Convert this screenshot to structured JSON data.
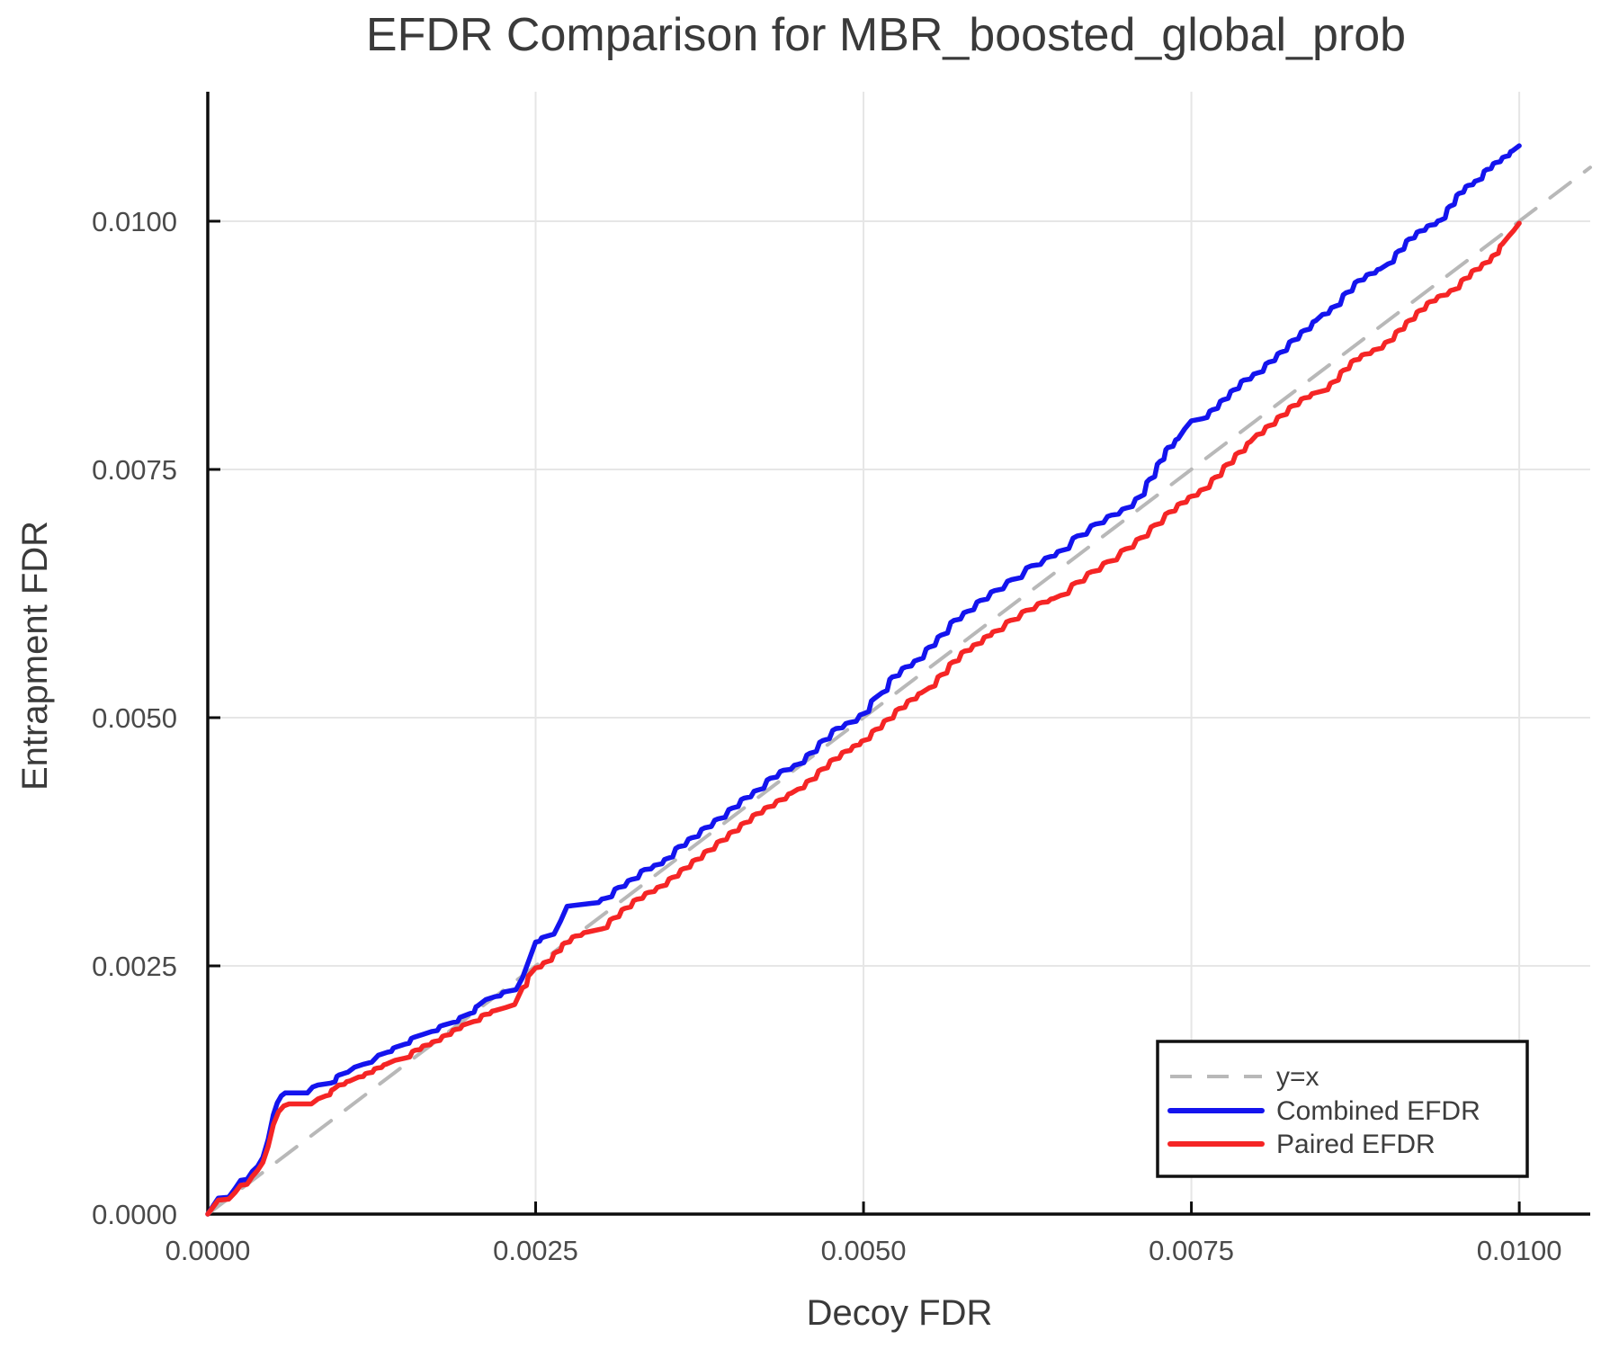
{
  "chart_data": {
    "type": "line",
    "title": "EFDR Comparison for MBR_boosted_global_prob",
    "xlabel": "Decoy FDR",
    "ylabel": "Entrapment FDR",
    "xlim": [
      0.0,
      0.010541
    ],
    "ylim": [
      0.0,
      0.011304
    ],
    "xticks": [
      0.0,
      0.0025,
      0.005,
      0.0075,
      0.01
    ],
    "yticks": [
      0.0,
      0.0025,
      0.005,
      0.0075,
      0.01
    ],
    "xtick_labels": [
      "0.0000",
      "0.0025",
      "0.0050",
      "0.0075",
      "0.0100"
    ],
    "ytick_labels": [
      "0.0000",
      "0.0025",
      "0.0050",
      "0.0075",
      "0.0100"
    ],
    "grid": true,
    "legend_position": "bottom-right",
    "series": [
      {
        "name": "y=x",
        "style": "dashed",
        "color": "#b8b8b8",
        "points": [
          [
            0.0,
            0.0
          ],
          [
            0.010541,
            0.010541
          ]
        ]
      },
      {
        "name": "Combined EFDR",
        "style": "solid",
        "color": "#1414ee",
        "points": [
          [
            0.0,
            0.0
          ],
          [
            4e-05,
            8e-05
          ],
          [
            8e-05,
            0.00016
          ],
          [
            0.00016,
            0.00017
          ],
          [
            0.00021,
            0.00026
          ],
          [
            0.00025,
            0.00034
          ],
          [
            0.0003,
            0.00035
          ],
          [
            0.00034,
            0.00043
          ],
          [
            0.00038,
            0.00048
          ],
          [
            0.00042,
            0.00057
          ],
          [
            0.00046,
            0.00075
          ],
          [
            0.0005,
            0.001
          ],
          [
            0.00053,
            0.00112
          ],
          [
            0.00056,
            0.00119
          ],
          [
            0.00059,
            0.00122
          ],
          [
            0.00076,
            0.00122
          ],
          [
            0.0008,
            0.00128
          ],
          [
            0.00084,
            0.0013
          ],
          [
            0.00094,
            0.00132
          ],
          [
            0.001,
            0.0014
          ],
          [
            0.00107,
            0.00143
          ],
          [
            0.00112,
            0.00148
          ],
          [
            0.00119,
            0.00151
          ],
          [
            0.00125,
            0.00153
          ],
          [
            0.0013,
            0.0016
          ],
          [
            0.00137,
            0.00163
          ],
          [
            0.00143,
            0.00168
          ],
          [
            0.0015,
            0.00171
          ],
          [
            0.00157,
            0.00178
          ],
          [
            0.00164,
            0.00181
          ],
          [
            0.00171,
            0.00184
          ],
          [
            0.00179,
            0.0019
          ],
          [
            0.00187,
            0.00193
          ],
          [
            0.00194,
            0.00199
          ],
          [
            0.002,
            0.00202
          ],
          [
            0.00206,
            0.0021
          ],
          [
            0.00212,
            0.00216
          ],
          [
            0.00219,
            0.00219
          ],
          [
            0.00227,
            0.00224
          ],
          [
            0.00235,
            0.00226
          ],
          [
            0.0024,
            0.00238
          ],
          [
            0.00245,
            0.00256
          ],
          [
            0.0025,
            0.00274
          ],
          [
            0.00256,
            0.00279
          ],
          [
            0.00264,
            0.00282
          ],
          [
            0.00269,
            0.00295
          ],
          [
            0.00274,
            0.0031
          ],
          [
            0.00293,
            0.00313
          ],
          [
            0.00303,
            0.00318
          ],
          [
            0.00313,
            0.00329
          ],
          [
            0.00323,
            0.00337
          ],
          [
            0.00333,
            0.00347
          ],
          [
            0.00343,
            0.00352
          ],
          [
            0.0035,
            0.00358
          ],
          [
            0.00359,
            0.0037
          ],
          [
            0.00369,
            0.00379
          ],
          [
            0.00379,
            0.00389
          ],
          [
            0.00389,
            0.00398
          ],
          [
            0.004,
            0.00409
          ],
          [
            0.00409,
            0.00419
          ],
          [
            0.00419,
            0.00427
          ],
          [
            0.00429,
            0.00439
          ],
          [
            0.00439,
            0.00447
          ],
          [
            0.0045,
            0.00453
          ],
          [
            0.00459,
            0.00464
          ],
          [
            0.00469,
            0.00477
          ],
          [
            0.00479,
            0.00489
          ],
          [
            0.00489,
            0.00495
          ],
          [
            0.005,
            0.00504
          ],
          [
            0.00508,
            0.00519
          ],
          [
            0.00514,
            0.00525
          ],
          [
            0.00522,
            0.00541
          ],
          [
            0.00532,
            0.00551
          ],
          [
            0.00541,
            0.00558
          ],
          [
            0.0055,
            0.00571
          ],
          [
            0.00559,
            0.00583
          ],
          [
            0.00569,
            0.00598
          ],
          [
            0.00579,
            0.00607
          ],
          [
            0.00589,
            0.00618
          ],
          [
            0.006,
            0.00628
          ],
          [
            0.00613,
            0.00639
          ],
          [
            0.00628,
            0.00653
          ],
          [
            0.00642,
            0.00662
          ],
          [
            0.0065,
            0.00668
          ],
          [
            0.00663,
            0.00683
          ],
          [
            0.00677,
            0.00695
          ],
          [
            0.00689,
            0.00704
          ],
          [
            0.007,
            0.00711
          ],
          [
            0.0071,
            0.00722
          ],
          [
            0.00718,
            0.0074
          ],
          [
            0.00726,
            0.00758
          ],
          [
            0.00732,
            0.00772
          ],
          [
            0.0074,
            0.00781
          ],
          [
            0.00745,
            0.00791
          ],
          [
            0.0075,
            0.00799
          ],
          [
            0.00758,
            0.00801
          ],
          [
            0.00766,
            0.0081
          ],
          [
            0.00774,
            0.0082
          ],
          [
            0.00782,
            0.0083
          ],
          [
            0.0079,
            0.0084
          ],
          [
            0.008,
            0.00847
          ],
          [
            0.00809,
            0.00858
          ],
          [
            0.00818,
            0.00868
          ],
          [
            0.00827,
            0.0088
          ],
          [
            0.00836,
            0.0089
          ],
          [
            0.00845,
            0.009
          ],
          [
            0.0085,
            0.00906
          ],
          [
            0.00859,
            0.00914
          ],
          [
            0.00868,
            0.00928
          ],
          [
            0.00877,
            0.0094
          ],
          [
            0.00886,
            0.00947
          ],
          [
            0.00894,
            0.00952
          ],
          [
            0.009,
            0.00957
          ],
          [
            0.00908,
            0.0097
          ],
          [
            0.00916,
            0.00982
          ],
          [
            0.00924,
            0.0099
          ],
          [
            0.00932,
            0.00996
          ],
          [
            0.0094,
            0.01001
          ],
          [
            0.00947,
            0.01015
          ],
          [
            0.00954,
            0.01028
          ],
          [
            0.00961,
            0.01036
          ],
          [
            0.00968,
            0.01041
          ],
          [
            0.00975,
            0.01052
          ],
          [
            0.00982,
            0.01059
          ],
          [
            0.00989,
            0.01065
          ],
          [
            0.00995,
            0.01071
          ],
          [
            0.01,
            0.01076
          ]
        ]
      },
      {
        "name": "Paired EFDR",
        "style": "solid",
        "color": "#f52525",
        "points": [
          [
            0.0,
            0.0
          ],
          [
            4e-05,
            7e-05
          ],
          [
            8e-05,
            0.00014
          ],
          [
            0.00016,
            0.00015
          ],
          [
            0.00021,
            0.00022
          ],
          [
            0.00025,
            0.00029
          ],
          [
            0.0003,
            0.0003
          ],
          [
            0.00034,
            0.00038
          ],
          [
            0.00038,
            0.00044
          ],
          [
            0.00042,
            0.00052
          ],
          [
            0.00046,
            0.00068
          ],
          [
            0.0005,
            0.0009
          ],
          [
            0.00054,
            0.00103
          ],
          [
            0.00058,
            0.00109
          ],
          [
            0.00062,
            0.00111
          ],
          [
            0.00079,
            0.00111
          ],
          [
            0.00084,
            0.00116
          ],
          [
            0.0009,
            0.00119
          ],
          [
            0.00096,
            0.00126
          ],
          [
            0.001,
            0.0013
          ],
          [
            0.00108,
            0.00134
          ],
          [
            0.00115,
            0.00138
          ],
          [
            0.00122,
            0.00142
          ],
          [
            0.00129,
            0.00147
          ],
          [
            0.00136,
            0.00151
          ],
          [
            0.00143,
            0.00155
          ],
          [
            0.0015,
            0.00157
          ],
          [
            0.00158,
            0.00165
          ],
          [
            0.00166,
            0.0017
          ],
          [
            0.00173,
            0.00174
          ],
          [
            0.00181,
            0.0018
          ],
          [
            0.00189,
            0.00186
          ],
          [
            0.00196,
            0.00191
          ],
          [
            0.00203,
            0.00194
          ],
          [
            0.00211,
            0.00201
          ],
          [
            0.00219,
            0.00205
          ],
          [
            0.00227,
            0.00208
          ],
          [
            0.00234,
            0.00211
          ],
          [
            0.0024,
            0.00228
          ],
          [
            0.00246,
            0.00242
          ],
          [
            0.0025,
            0.00248
          ],
          [
            0.00258,
            0.00254
          ],
          [
            0.00266,
            0.00264
          ],
          [
            0.00272,
            0.00273
          ],
          [
            0.0028,
            0.0028
          ],
          [
            0.00289,
            0.00284
          ],
          [
            0.003,
            0.00287
          ],
          [
            0.00309,
            0.00298
          ],
          [
            0.00318,
            0.00308
          ],
          [
            0.00327,
            0.00317
          ],
          [
            0.00336,
            0.00324
          ],
          [
            0.00345,
            0.0033
          ],
          [
            0.00354,
            0.00339
          ],
          [
            0.00363,
            0.00348
          ],
          [
            0.00372,
            0.00357
          ],
          [
            0.00381,
            0.00366
          ],
          [
            0.00391,
            0.00376
          ],
          [
            0.004,
            0.00385
          ],
          [
            0.00409,
            0.00394
          ],
          [
            0.00418,
            0.00403
          ],
          [
            0.00427,
            0.0041
          ],
          [
            0.00436,
            0.00417
          ],
          [
            0.00445,
            0.00424
          ],
          [
            0.0045,
            0.00428
          ],
          [
            0.00459,
            0.00437
          ],
          [
            0.00468,
            0.00448
          ],
          [
            0.00477,
            0.00458
          ],
          [
            0.00486,
            0.00466
          ],
          [
            0.00494,
            0.00472
          ],
          [
            0.005,
            0.00477
          ],
          [
            0.00509,
            0.00488
          ],
          [
            0.00518,
            0.00498
          ],
          [
            0.00527,
            0.00509
          ],
          [
            0.00536,
            0.00518
          ],
          [
            0.00544,
            0.00525
          ],
          [
            0.0055,
            0.0053
          ],
          [
            0.00559,
            0.00543
          ],
          [
            0.00568,
            0.00556
          ],
          [
            0.00577,
            0.00567
          ],
          [
            0.00586,
            0.00574
          ],
          [
            0.00594,
            0.00582
          ],
          [
            0.006,
            0.00587
          ],
          [
            0.00612,
            0.00598
          ],
          [
            0.00624,
            0.00608
          ],
          [
            0.00636,
            0.00616
          ],
          [
            0.00645,
            0.0062
          ],
          [
            0.0065,
            0.00623
          ],
          [
            0.00662,
            0.00636
          ],
          [
            0.00674,
            0.00647
          ],
          [
            0.00686,
            0.00657
          ],
          [
            0.007,
            0.0067
          ],
          [
            0.00711,
            0.00681
          ],
          [
            0.00722,
            0.00694
          ],
          [
            0.00733,
            0.00707
          ],
          [
            0.00742,
            0.00716
          ],
          [
            0.0075,
            0.00723
          ],
          [
            0.00759,
            0.0073
          ],
          [
            0.00768,
            0.00742
          ],
          [
            0.00777,
            0.00755
          ],
          [
            0.00786,
            0.00767
          ],
          [
            0.00795,
            0.00778
          ],
          [
            0.008,
            0.00785
          ],
          [
            0.00809,
            0.00794
          ],
          [
            0.00818,
            0.00804
          ],
          [
            0.00827,
            0.00814
          ],
          [
            0.00836,
            0.00822
          ],
          [
            0.00844,
            0.00827
          ],
          [
            0.0085,
            0.00829
          ],
          [
            0.00858,
            0.00838
          ],
          [
            0.00866,
            0.0085
          ],
          [
            0.00874,
            0.0086
          ],
          [
            0.00882,
            0.00866
          ],
          [
            0.00891,
            0.00871
          ],
          [
            0.009,
            0.00879
          ],
          [
            0.00908,
            0.0089
          ],
          [
            0.00916,
            0.009
          ],
          [
            0.00924,
            0.0091
          ],
          [
            0.00932,
            0.00919
          ],
          [
            0.0094,
            0.00925
          ],
          [
            0.0095,
            0.00931
          ],
          [
            0.00958,
            0.00942
          ],
          [
            0.00966,
            0.00951
          ],
          [
            0.00974,
            0.00958
          ],
          [
            0.00981,
            0.00966
          ],
          [
            0.00987,
            0.00977
          ],
          [
            0.00992,
            0.00985
          ],
          [
            0.00996,
            0.00991
          ],
          [
            0.01,
            0.00998
          ]
        ]
      }
    ],
    "colors": {
      "grid": "#e6e6e6",
      "spine": "#0d0d0d",
      "title_text": "#3a3a3a",
      "tick_text": "#4a4a4a",
      "legend_border": "#111111",
      "legend_background": "#ffffff"
    }
  }
}
